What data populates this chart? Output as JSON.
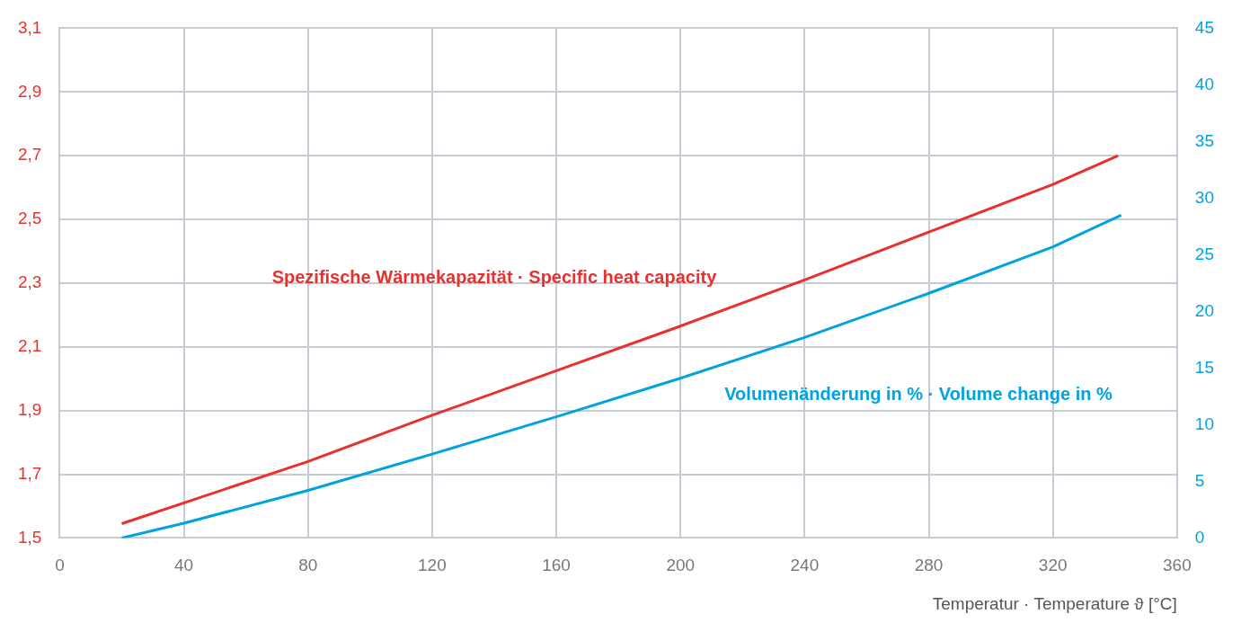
{
  "chart_data": {
    "type": "line",
    "xlabel": "Temperatur · Temperature ϑ [°C]",
    "xlim": [
      0,
      360
    ],
    "xticks": [
      0,
      40,
      80,
      120,
      160,
      200,
      240,
      280,
      320,
      360
    ],
    "ylim": [
      1.5,
      3.1
    ],
    "yticks": [
      {
        "value": 1.5,
        "label": "1,5"
      },
      {
        "value": 1.7,
        "label": "1,7"
      },
      {
        "value": 1.9,
        "label": "1,9"
      },
      {
        "value": 2.1,
        "label": "2,1"
      },
      {
        "value": 2.3,
        "label": "2,3"
      },
      {
        "value": 2.5,
        "label": "2,5"
      },
      {
        "value": 2.7,
        "label": "2,7"
      },
      {
        "value": 2.9,
        "label": "2,9"
      },
      {
        "value": 3.1,
        "label": "3,1"
      }
    ],
    "y2lim": [
      0,
      45
    ],
    "y2ticks": [
      0,
      5,
      10,
      15,
      20,
      25,
      30,
      35,
      40,
      45
    ],
    "grid": true,
    "legend": false,
    "marker": "none",
    "line_style": "solid",
    "series": [
      {
        "name": "Spezifische Wärmekapazität · Specific heat capacity",
        "color": "#e8312f",
        "x": [
          20,
          80,
          120,
          160,
          200,
          240,
          280,
          320,
          341
        ],
        "values": [
          1.545,
          1.74,
          1.885,
          2.025,
          2.165,
          2.31,
          2.46,
          2.61,
          2.7
        ]
      },
      {
        "name": "Volumenänderung in % · Volume change in %",
        "color": "#00a3e0",
        "axis": "y2",
        "x": [
          20,
          40,
          80,
          120,
          160,
          200,
          240,
          280,
          320,
          342
        ],
        "values": [
          0,
          1.3,
          4.2,
          7.4,
          10.7,
          14.1,
          17.7,
          21.6,
          25.7,
          28.5
        ]
      }
    ]
  }
}
